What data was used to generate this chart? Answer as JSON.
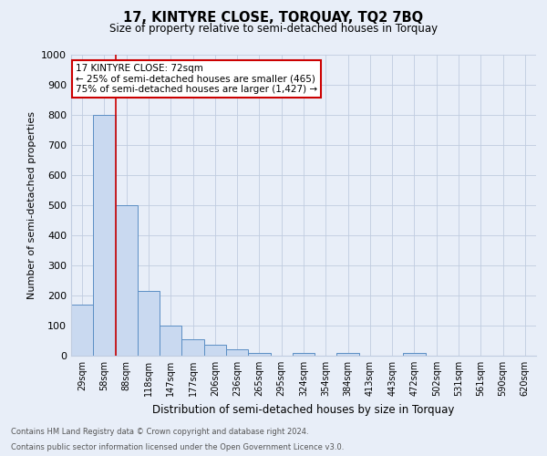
{
  "title": "17, KINTYRE CLOSE, TORQUAY, TQ2 7BQ",
  "subtitle": "Size of property relative to semi-detached houses in Torquay",
  "xlabel": "Distribution of semi-detached houses by size in Torquay",
  "ylabel": "Number of semi-detached properties",
  "footnote1": "Contains HM Land Registry data © Crown copyright and database right 2024.",
  "footnote2": "Contains public sector information licensed under the Open Government Licence v3.0.",
  "bar_labels": [
    "29sqm",
    "58sqm",
    "88sqm",
    "118sqm",
    "147sqm",
    "177sqm",
    "206sqm",
    "236sqm",
    "265sqm",
    "295sqm",
    "324sqm",
    "354sqm",
    "384sqm",
    "413sqm",
    "443sqm",
    "472sqm",
    "502sqm",
    "531sqm",
    "561sqm",
    "590sqm",
    "620sqm"
  ],
  "bar_values": [
    170,
    800,
    500,
    215,
    100,
    55,
    35,
    20,
    10,
    0,
    8,
    0,
    8,
    0,
    0,
    8,
    0,
    0,
    0,
    0,
    0
  ],
  "bar_color": "#c9d9f0",
  "bar_edge_color": "#5b8ec4",
  "red_line_index": 1,
  "ylim": [
    0,
    1000
  ],
  "yticks": [
    0,
    100,
    200,
    300,
    400,
    500,
    600,
    700,
    800,
    900,
    1000
  ],
  "annotation_title": "17 KINTYRE CLOSE: 72sqm",
  "annotation_line1": "← 25% of semi-detached houses are smaller (465)",
  "annotation_line2": "75% of semi-detached houses are larger (1,427) →",
  "annotation_border_color": "#cc0000",
  "background_color": "#e8eef8"
}
